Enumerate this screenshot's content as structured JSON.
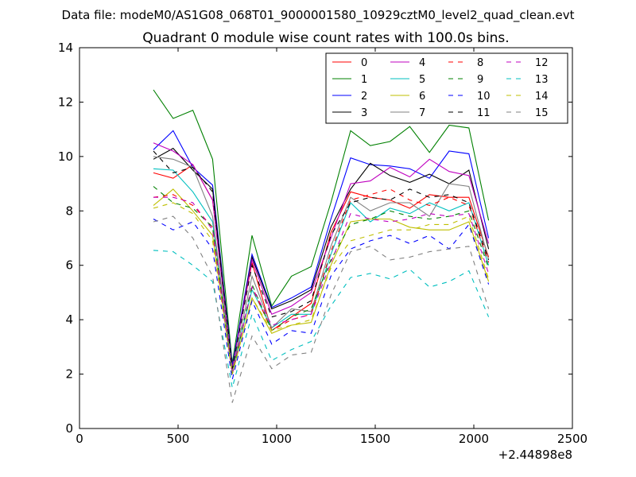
{
  "chart_data": {
    "type": "line",
    "suptitle": "Data file: modeM0/AS1G08_068T01_9000001580_10929cztM0_level2_quad_clean.evt",
    "title": "Quadrant 0 module wise count rates with 100.0s bins.",
    "xlabel": "",
    "ylabel": "",
    "x_offset_label": "+2.44898e8",
    "xlim": [
      0,
      2500
    ],
    "ylim": [
      0,
      14
    ],
    "xticks": [
      0,
      500,
      1000,
      1500,
      2000,
      2500
    ],
    "yticks": [
      0,
      2,
      4,
      6,
      8,
      10,
      12,
      14
    ],
    "grid": false,
    "legend_placement": "top-right",
    "x": [
      375,
      475,
      575,
      675,
      775,
      875,
      975,
      1075,
      1175,
      1275,
      1375,
      1475,
      1575,
      1675,
      1775,
      1875,
      1975,
      2075
    ],
    "series": [
      {
        "name": "0",
        "color": "#ff0000",
        "dash": "solid",
        "values": [
          9.4,
          9.2,
          9.7,
          8.4,
          2.3,
          6.1,
          3.6,
          4.1,
          4.6,
          7.2,
          8.7,
          8.5,
          8.4,
          8.1,
          8.6,
          8.5,
          8.5,
          6.3
        ]
      },
      {
        "name": "1",
        "color": "#008000",
        "dash": "solid",
        "values": [
          12.45,
          11.4,
          11.7,
          9.9,
          2.4,
          7.1,
          4.5,
          5.6,
          5.95,
          8.3,
          10.95,
          10.4,
          10.55,
          11.1,
          10.15,
          11.15,
          11.05,
          7.65
        ]
      },
      {
        "name": "2",
        "color": "#0000ff",
        "dash": "solid",
        "values": [
          10.25,
          10.95,
          9.6,
          8.95,
          2.3,
          6.4,
          4.45,
          4.8,
          5.2,
          7.7,
          9.95,
          9.7,
          9.65,
          9.55,
          9.2,
          10.2,
          10.1,
          7.0
        ]
      },
      {
        "name": "3",
        "color": "#000000",
        "dash": "solid",
        "values": [
          9.9,
          10.3,
          9.5,
          8.8,
          2.2,
          6.3,
          4.4,
          4.7,
          5.1,
          7.4,
          8.8,
          9.75,
          9.3,
          9.05,
          9.35,
          9.0,
          9.5,
          6.6
        ]
      },
      {
        "name": "4",
        "color": "#bf00bf",
        "dash": "solid",
        "values": [
          10.5,
          10.2,
          9.7,
          8.4,
          2.2,
          6.2,
          4.2,
          4.5,
          5.0,
          7.0,
          9.0,
          9.1,
          9.6,
          9.25,
          9.9,
          9.45,
          9.3,
          6.8
        ]
      },
      {
        "name": "5",
        "color": "#00bfbf",
        "dash": "solid",
        "values": [
          9.55,
          9.5,
          8.7,
          7.6,
          2.1,
          5.1,
          3.7,
          4.2,
          4.2,
          6.4,
          8.3,
          7.6,
          8.1,
          7.9,
          8.3,
          8.0,
          8.3,
          6.0
        ]
      },
      {
        "name": "6",
        "color": "#bfbf00",
        "dash": "solid",
        "values": [
          8.2,
          8.8,
          8.0,
          7.1,
          2.0,
          4.8,
          3.5,
          3.8,
          3.9,
          6.0,
          7.6,
          7.7,
          7.7,
          7.4,
          7.3,
          7.3,
          7.6,
          5.4
        ]
      },
      {
        "name": "7",
        "color": "#808080",
        "dash": "solid",
        "values": [
          10.0,
          9.9,
          9.6,
          7.8,
          2.1,
          5.6,
          3.7,
          4.4,
          4.3,
          6.7,
          8.5,
          8.0,
          8.3,
          8.3,
          7.8,
          9.0,
          8.9,
          6.2
        ]
      },
      {
        "name": "8",
        "color": "#ff0000",
        "dash": "dashed",
        "values": [
          8.5,
          8.6,
          8.2,
          7.4,
          2.0,
          5.2,
          3.6,
          4.0,
          4.2,
          6.5,
          8.4,
          8.6,
          8.8,
          8.4,
          8.2,
          8.5,
          8.2,
          6.1
        ]
      },
      {
        "name": "9",
        "color": "#008000",
        "dash": "dashed",
        "values": [
          8.9,
          8.3,
          8.1,
          7.4,
          2.0,
          5.3,
          3.6,
          4.1,
          4.4,
          6.2,
          7.5,
          7.7,
          8.0,
          7.8,
          7.7,
          7.8,
          8.0,
          5.9
        ]
      },
      {
        "name": "10",
        "color": "#0000ff",
        "dash": "dashed",
        "values": [
          7.7,
          7.3,
          7.6,
          6.6,
          1.8,
          4.7,
          3.1,
          3.6,
          3.5,
          5.6,
          6.6,
          6.9,
          7.1,
          6.8,
          7.1,
          6.6,
          7.5,
          5.3
        ]
      },
      {
        "name": "11",
        "color": "#000000",
        "dash": "dashed",
        "values": [
          10.2,
          9.4,
          9.6,
          8.7,
          2.2,
          6.0,
          4.1,
          4.3,
          4.7,
          7.1,
          8.3,
          8.5,
          8.4,
          8.8,
          8.5,
          8.6,
          8.3,
          6.2
        ]
      },
      {
        "name": "12",
        "color": "#bf00bf",
        "dash": "dashed",
        "values": [
          8.5,
          8.5,
          8.3,
          7.3,
          2.0,
          5.2,
          3.8,
          4.0,
          4.2,
          6.1,
          7.9,
          7.7,
          7.6,
          7.7,
          7.9,
          7.8,
          7.9,
          5.7
        ]
      },
      {
        "name": "13",
        "color": "#00bfbf",
        "dash": "dashed",
        "values": [
          6.55,
          6.5,
          6.0,
          5.4,
          1.5,
          4.2,
          2.5,
          2.9,
          3.2,
          4.5,
          5.55,
          5.7,
          5.5,
          5.85,
          5.2,
          5.4,
          5.8,
          4.1
        ]
      },
      {
        "name": "14",
        "color": "#bfbf00",
        "dash": "dashed",
        "values": [
          8.1,
          8.3,
          7.9,
          6.9,
          2.0,
          4.8,
          3.6,
          3.8,
          4.0,
          5.9,
          6.9,
          7.1,
          7.3,
          7.3,
          7.5,
          7.5,
          7.8,
          5.5
        ]
      },
      {
        "name": "15",
        "color": "#808080",
        "dash": "dashed",
        "values": [
          7.6,
          7.8,
          7.0,
          5.6,
          0.95,
          3.4,
          2.2,
          2.7,
          2.8,
          4.9,
          6.5,
          6.7,
          6.2,
          6.3,
          6.5,
          6.6,
          6.7,
          4.4
        ]
      }
    ]
  }
}
